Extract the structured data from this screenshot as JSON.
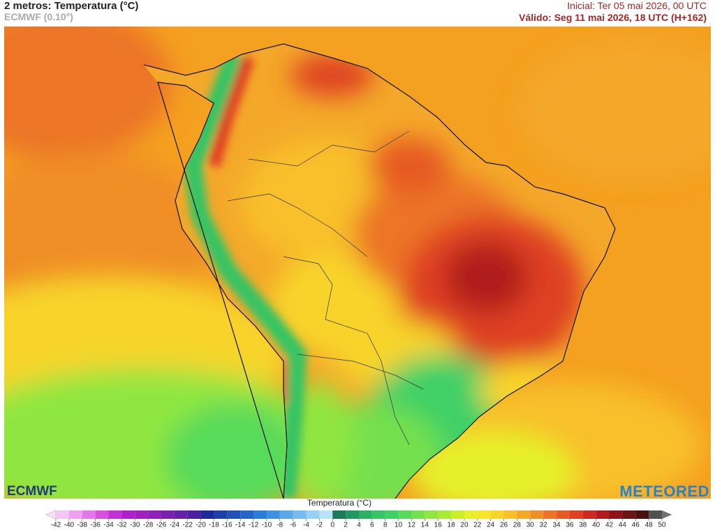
{
  "header": {
    "title": "2 metros: Temperatura (°C)",
    "model": "ECMWF (0.10°)",
    "initial": "Inicial: Ter 05 mai 2026, 00 UTC",
    "valid": "Válido: Seg 11 mai 2026, 18 UTC (H+162)"
  },
  "logos": {
    "left": "ECMWF",
    "right": "METEORED"
  },
  "colorbar": {
    "title": "Temperatura (°C)",
    "ticks": [
      -42,
      -40,
      -38,
      -36,
      -34,
      -32,
      -30,
      -28,
      -26,
      -24,
      -22,
      -20,
      -18,
      -16,
      -14,
      -12,
      -10,
      -8,
      -6,
      -4,
      -2,
      0,
      2,
      4,
      6,
      8,
      10,
      12,
      14,
      16,
      18,
      20,
      22,
      24,
      26,
      28,
      30,
      32,
      34,
      36,
      38,
      40,
      42,
      44,
      46,
      48,
      50
    ],
    "colors": [
      "#f4c6f4",
      "#f0a0f0",
      "#e478e8",
      "#d850e0",
      "#c430d4",
      "#b020c8",
      "#a020c0",
      "#9020b8",
      "#7a20b0",
      "#6420a8",
      "#4e20a0",
      "#1e2a9c",
      "#1e3ea8",
      "#2050b8",
      "#2466c8",
      "#2a7cd8",
      "#3c92e0",
      "#5aa8e8",
      "#78bcee",
      "#98d0f4",
      "#b8e2f8",
      "#1a7a5a",
      "#22985e",
      "#2cb062",
      "#36c464",
      "#40d066",
      "#58da5a",
      "#74e04e",
      "#90e640",
      "#aaea34",
      "#c8ee2c",
      "#e6f02a",
      "#f6e62a",
      "#f8d42a",
      "#f8c02a",
      "#f4a82a",
      "#f08e28",
      "#ec7426",
      "#e65a24",
      "#de4022",
      "#cc2a20",
      "#b01c1c",
      "#8c1418",
      "#6a1414",
      "#4a1010",
      "#505050"
    ]
  }
}
